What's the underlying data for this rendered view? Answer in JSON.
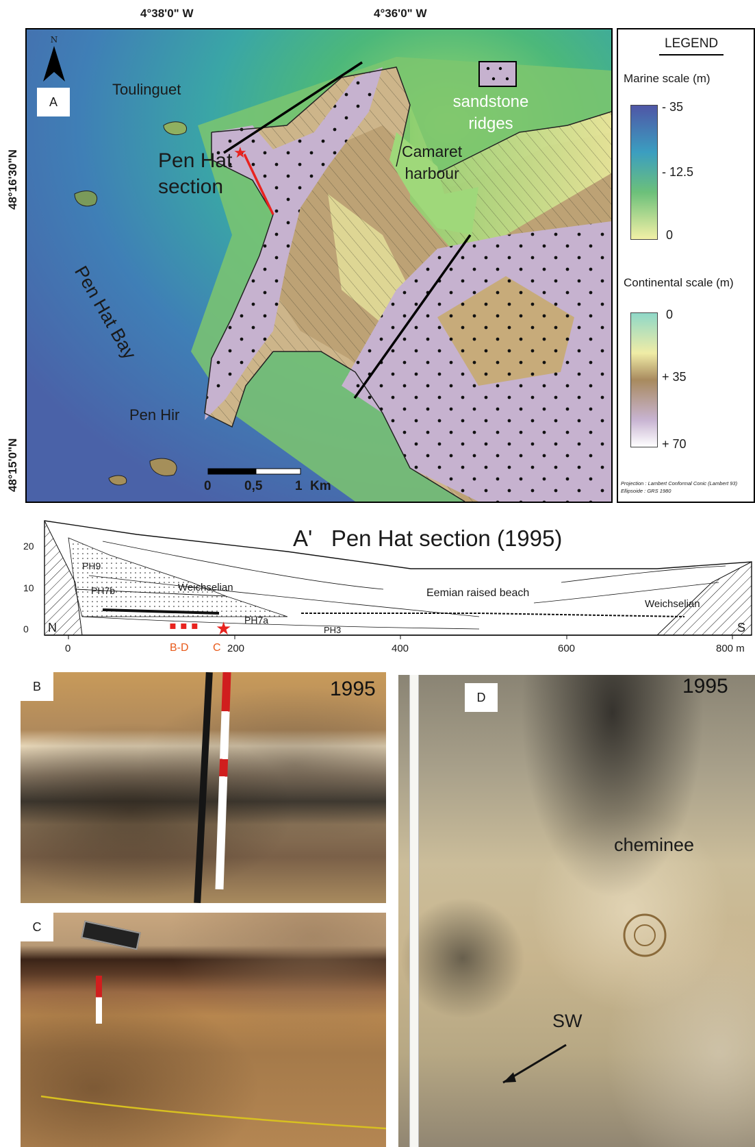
{
  "coordinates": {
    "lon_left": "4°38'0\" W",
    "lon_right": "4°36'0\" W",
    "lat_top": "48°16'30\"N",
    "lat_bottom": "48°15'0\"N"
  },
  "map": {
    "panel_label": "A",
    "north_label": "N",
    "places": {
      "toulinguet": "Toulinguet",
      "pen_hat_section": [
        "Pen Hat",
        "section"
      ],
      "pen_hat_bay": "Pen Hat Bay",
      "camaret_harbour": [
        "Camaret",
        "harbour"
      ],
      "pen_hir": "Pen Hir",
      "sandstone_ridges": [
        "sandstone",
        "ridges"
      ]
    },
    "scalebar": {
      "labels": [
        "0",
        "0,5",
        "1",
        "Km"
      ]
    }
  },
  "legend": {
    "title": "LEGEND",
    "marine_title": "Marine scale (m)",
    "marine_ticks": [
      "- 35",
      "- 12.5",
      "0"
    ],
    "continental_title": "Continental scale (m)",
    "continental_ticks": [
      "0",
      "+ 35",
      "+ 70"
    ],
    "projection": "Projection : Lambert Conformal Conic (Lambert 93)",
    "ellipsoid": "Ellipsoide : GRS 1980"
  },
  "section": {
    "title": "A'   Pen Hat section (1995)",
    "y_ticks": [
      "20",
      "10",
      "0"
    ],
    "x_ticks": [
      "0",
      "200",
      "400",
      "600",
      "800 m"
    ],
    "ends": {
      "north": "N",
      "south": "S"
    },
    "units": [
      "PH9",
      "PH7b",
      "Weichselian",
      "PH7a",
      "PH3",
      "Eemian raised beach",
      "Weichselian"
    ],
    "markers": {
      "bd": "B-D",
      "c": "C"
    }
  },
  "photos": {
    "b": {
      "label": "B",
      "year": "1995"
    },
    "c": {
      "label": "C"
    },
    "d": {
      "label": "D",
      "year": "1995",
      "cheminee": "cheminee",
      "sw": "SW"
    }
  },
  "colors": {
    "red_marker": "#e8231f",
    "orange_label": "#e85a1a"
  }
}
